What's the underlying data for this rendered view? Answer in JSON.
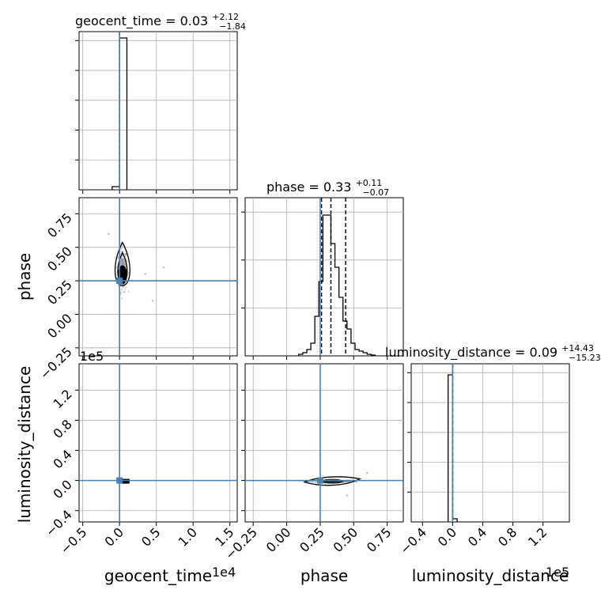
{
  "chart_data": {
    "type": "corner",
    "parameters": [
      "geocent_time",
      "phase",
      "luminosity_distance"
    ],
    "truths": {
      "geocent_time": 0.0,
      "phase": 0.25,
      "luminosity_distance": 0.0
    },
    "colors": {
      "truth": "#4682b4",
      "hist": "#000000",
      "grid": "#b0b0b0",
      "scatter": "#888888"
    },
    "titles": [
      {
        "param": "geocent_time",
        "text": "geocent_time = 0.03",
        "plus": "+2.12",
        "minus": "−1.84"
      },
      {
        "param": "phase",
        "text": "phase = 0.33",
        "plus": "+0.11",
        "minus": "−0.07"
      },
      {
        "param": "luminosity_distance",
        "text": "luminosity_distance = 0.09",
        "plus": "+14.43",
        "minus": "−15.23"
      }
    ],
    "axes": {
      "geocent_time": {
        "label": "geocent_time",
        "range": [
          -0.55,
          1.6
        ],
        "ticks": [
          -0.5,
          0.0,
          0.5,
          1.0,
          1.5
        ],
        "tick_labels": [
          "−0.5",
          "0.0",
          "0.5",
          "1.0",
          "1.5"
        ],
        "offset": "1e4"
      },
      "phase": {
        "label": "phase",
        "range": [
          -0.31,
          0.87
        ],
        "ticks": [
          -0.25,
          0.0,
          0.25,
          0.5,
          0.75
        ],
        "tick_labels": [
          "−0.25",
          "0.00",
          "0.25",
          "0.50",
          "0.75"
        ],
        "offset": ""
      },
      "luminosity_distance": {
        "label": "luminosity_distance",
        "range": [
          -0.55,
          1.55
        ],
        "ticks": [
          -0.4,
          0.0,
          0.4,
          0.8,
          1.2
        ],
        "tick_labels": [
          "−0.4",
          "0.0",
          "0.4",
          "0.8",
          "1.2"
        ],
        "offset": "1e5"
      }
    },
    "hist_geocent_time": {
      "edges": [
        -0.1,
        0.0,
        0.1
      ],
      "counts": [
        0.02,
        0.96
      ],
      "quantiles": [
        0.0,
        0.0,
        0.0
      ]
    },
    "hist_phase": {
      "edges": [
        0.09,
        0.12,
        0.15,
        0.18,
        0.21,
        0.24,
        0.27,
        0.3,
        0.33,
        0.36,
        0.39,
        0.42,
        0.45,
        0.48,
        0.51,
        0.54,
        0.57,
        0.6,
        0.63,
        0.66
      ],
      "counts": [
        0.01,
        0.02,
        0.04,
        0.08,
        0.25,
        0.47,
        0.89,
        0.89,
        0.71,
        0.56,
        0.37,
        0.22,
        0.17,
        0.08,
        0.04,
        0.03,
        0.02,
        0.01,
        0.005
      ],
      "quantiles": [
        0.26,
        0.33,
        0.44
      ]
    },
    "hist_luminosity_distance": {
      "edges": [
        -0.06,
        0.0,
        0.06
      ],
      "counts": [
        0.93,
        0.02
      ],
      "quantiles": [
        0.0,
        0.0,
        0.0
      ]
    },
    "scatter_phase_vs_geocent_time": {
      "center": [
        0.04,
        0.33
      ],
      "spread": [
        0.03,
        0.08
      ],
      "outliers": [
        [
          0.35,
          0.3
        ],
        [
          0.45,
          0.1
        ],
        [
          0.6,
          0.35
        ],
        [
          -0.15,
          0.6
        ]
      ]
    },
    "scatter_ld_vs_geocent_time": {
      "center": [
        0.05,
        -0.01
      ],
      "spread": [
        0.03,
        0.005
      ]
    },
    "scatter_ld_vs_phase": {
      "center": [
        0.33,
        -0.01
      ],
      "spread": [
        0.08,
        0.008
      ],
      "outliers": [
        [
          0.6,
          0.1
        ],
        [
          0.45,
          -0.2
        ]
      ]
    }
  }
}
